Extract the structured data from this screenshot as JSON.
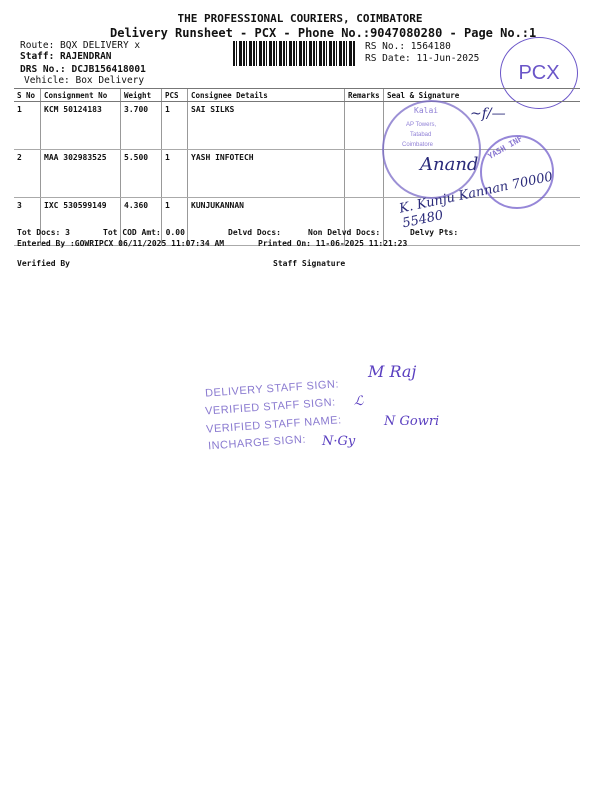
{
  "header": {
    "title": "THE PROFESSIONAL COURIERS, COIMBATORE",
    "subtitle": "Delivery Runsheet - PCX - Phone No.:9047080280 - Page No.:1"
  },
  "meta": {
    "route": "Route: BQX DELIVERY x",
    "staff": "Staff: RAJENDRAN",
    "drs": "DRS No.: DCJB156418001",
    "vehicle": "Vehicle: Box Delivery",
    "rs_no": "RS No.: 1564180",
    "rs_date": "RS Date: 11-Jun-2025",
    "stamp_pcx": "PCX"
  },
  "table": {
    "headers": [
      "S No",
      "Consignment No",
      "Weight",
      "PCS",
      "Consignee Details",
      "Remarks",
      "Seal & Signature"
    ],
    "rows": [
      {
        "sno": "1",
        "consignment": "KCM 50124183",
        "weight": "3.700",
        "pcs": "1",
        "consignee": "SAI SILKS",
        "remarks": ""
      },
      {
        "sno": "2",
        "consignment": "MAA 302983525",
        "weight": "5.500",
        "pcs": "1",
        "consignee": "YASH INFOTECH",
        "remarks": ""
      },
      {
        "sno": "3",
        "consignment": "IXC 530599149",
        "weight": "4.360",
        "pcs": "1",
        "consignee": "KUNJUKANNAN",
        "remarks": ""
      }
    ],
    "seal_text": [
      "Kalai",
      "AP Towers,",
      "Tatabad",
      "Coimbatore",
      "YASH INF"
    ],
    "handwritten": "K. Kunju Kannan 70000 55480"
  },
  "summary": {
    "tot_docs": "Tot Docs:   3",
    "tot_cod": "Tot COD Amt:    0.00",
    "delvd_docs": "Delvd Docs:",
    "non_delvd": "Non Delvd Docs:",
    "delvy_pts": "Delvy Pts:",
    "entered_by": "Entered By :GOWRIPCX 06/11/2025 11:07:34 AM",
    "printed_on": "Printed On: 11-06-2025 11:21:23",
    "verified_by": "Verified By",
    "staff_signature": "Staff Signature"
  },
  "stamp": {
    "line1": "DELIVERY STAFF SIGN:",
    "line2": "VERIFIED STAFF SIGN:",
    "line3": "VERIFIED STAFF NAME:",
    "line4": "INCHARGE SIGN:",
    "sig1": "M Raj",
    "sig3": "N Gowri"
  }
}
